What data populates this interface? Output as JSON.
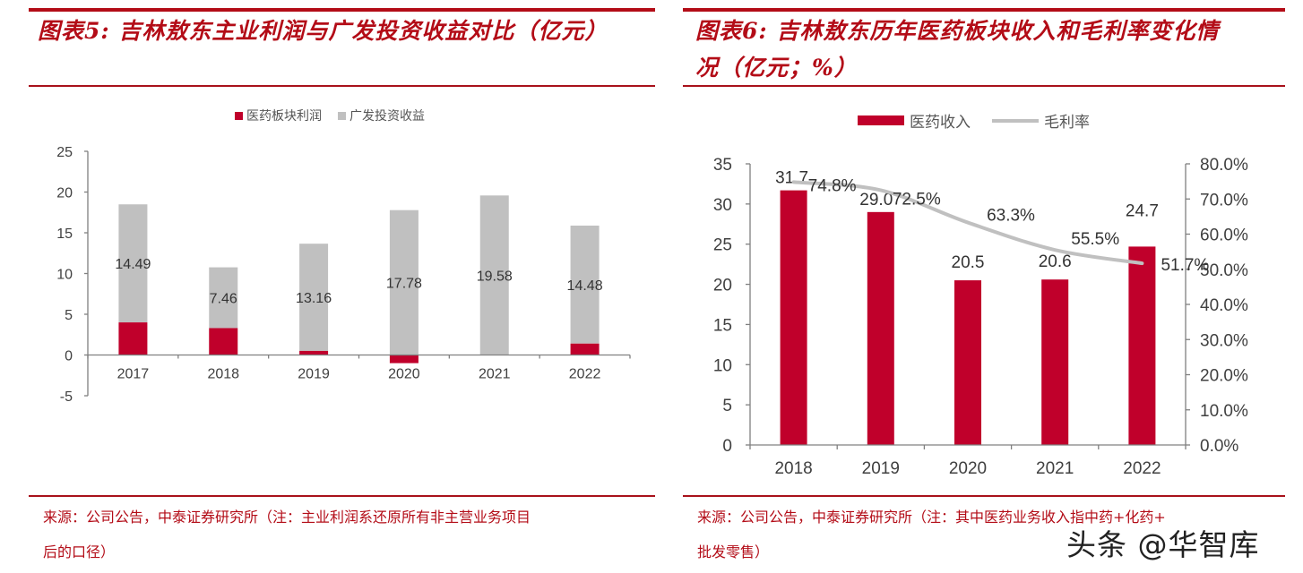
{
  "figure5": {
    "title": "图表5: 吉林敖东主业利润与广发投资收益对比（亿元）",
    "source_line1": "来源：公司公告，中泰证券研究所（注：主业利润系还原所有非主营业务项目",
    "source_line2": "后的口径）",
    "legend": [
      {
        "label": "医药板块利润",
        "color": "#c0002b"
      },
      {
        "label": "广发投资收益",
        "color": "#c0c0c0"
      }
    ]
  },
  "figure6": {
    "title_line1": "图表6: 吉林敖东历年医药板块收入和毛利率变化情",
    "title_line2": "况（亿元；%）",
    "source_line1": "来源：公司公告，中泰证券研究所（注：其中医药业务收入指中药+化药+",
    "source_line2": "批发零售）",
    "legend": [
      {
        "label": "医药收入",
        "color": "#c0002b"
      },
      {
        "label": "毛利率",
        "color": "#c0c0c0"
      }
    ]
  },
  "watermark": "头条 @华智库",
  "chart_data": [
    {
      "type": "bar",
      "stacked": true,
      "title": "图表5: 吉林敖东主业利润与广发投资收益对比（亿元）",
      "categories": [
        "2017",
        "2018",
        "2019",
        "2020",
        "2021",
        "2022"
      ],
      "series": [
        {
          "name": "医药板块利润",
          "color": "#c0002b",
          "values": [
            4.0,
            3.3,
            0.5,
            -1.0,
            0.0,
            1.4
          ]
        },
        {
          "name": "广发投资收益",
          "color": "#c0c0c0",
          "values": [
            14.49,
            7.46,
            13.16,
            17.78,
            19.58,
            14.48
          ],
          "data_labels": [
            "14.49",
            "7.46",
            "13.16",
            "17.78",
            "19.58",
            "14.48"
          ]
        }
      ],
      "yticks": [
        "25",
        "20",
        "15",
        "10",
        "5",
        "0",
        "-5"
      ],
      "ylim": [
        -5,
        25
      ],
      "xlabel": "",
      "ylabel": "",
      "grid": false,
      "legend_position": "top"
    },
    {
      "type": "bar+line",
      "title": "图表6: 吉林敖东历年医药板块收入和毛利率变化情况（亿元；%）",
      "categories": [
        "2018",
        "2019",
        "2020",
        "2021",
        "2022"
      ],
      "series": [
        {
          "name": "医药收入",
          "type": "bar",
          "axis": "left",
          "color": "#c0002b",
          "values": [
            31.7,
            29.0,
            20.5,
            20.6,
            24.7
          ],
          "data_labels": [
            "31.7",
            "29.0",
            "20.5",
            "20.6",
            "24.7"
          ]
        },
        {
          "name": "毛利率",
          "type": "line",
          "axis": "right",
          "color": "#c0c0c0",
          "values": [
            74.8,
            72.5,
            63.3,
            55.5,
            51.7
          ],
          "data_labels": [
            "74.8%",
            "72.5%",
            "63.3%",
            "55.5%",
            "51.7%"
          ]
        }
      ],
      "yticks_left": [
        "35",
        "30",
        "25",
        "20",
        "15",
        "10",
        "5",
        "0"
      ],
      "ylim_left": [
        0,
        35
      ],
      "yticks_right": [
        "80.0%",
        "70.0%",
        "60.0%",
        "50.0%",
        "40.0%",
        "30.0%",
        "20.0%",
        "10.0%",
        "0.0%"
      ],
      "ylim_right": [
        0,
        80
      ],
      "grid": false,
      "legend_position": "top"
    }
  ]
}
